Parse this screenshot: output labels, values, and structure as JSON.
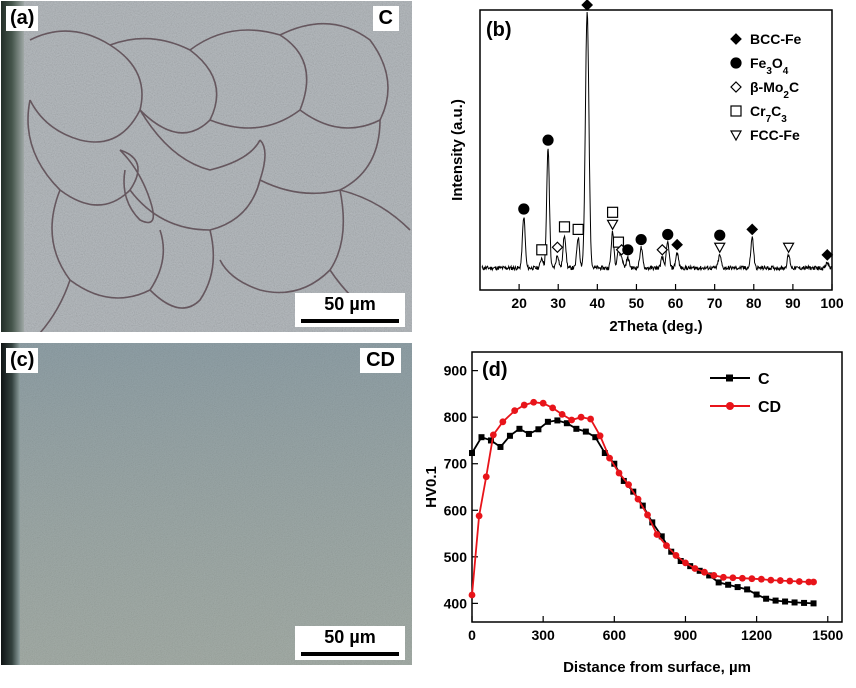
{
  "panel_a": {
    "tag": "(a)",
    "sample": "C",
    "scale": "50 µm"
  },
  "panel_c": {
    "tag": "(c)",
    "sample": "CD",
    "scale": "50 µm"
  },
  "colors": {
    "C": "#000000",
    "CD": "#e8141a",
    "micro_a": "#b7bcc0",
    "micro_c": "#9aa8ae"
  },
  "chart_data": [
    {
      "panel": "(b)",
      "type": "line",
      "xlabel": "2Theta (deg.)",
      "ylabel": "Intensity (a.u.)",
      "xlim": [
        10,
        100
      ],
      "xticks": [
        20,
        30,
        40,
        50,
        60,
        70,
        80,
        90,
        100
      ],
      "legend": [
        {
          "symbol": "diamond-filled",
          "label": "BCC-Fe"
        },
        {
          "symbol": "circle-filled",
          "label": "Fe3O4"
        },
        {
          "symbol": "diamond-open",
          "label": "β-Mo2C"
        },
        {
          "symbol": "square-open",
          "label": "Cr7C3"
        },
        {
          "symbol": "triangle-down-open",
          "label": "FCC-Fe"
        }
      ],
      "legend_position": "top-right",
      "peaks": [
        {
          "x": 21.2,
          "h": 0.2,
          "markers": [
            "circle-filled"
          ]
        },
        {
          "x": 25.8,
          "h": 0.04,
          "markers": [
            "square-open"
          ]
        },
        {
          "x": 27.4,
          "h": 0.47,
          "markers": [
            "circle-filled"
          ]
        },
        {
          "x": 29.8,
          "h": 0.05,
          "markers": [
            "diamond-open"
          ]
        },
        {
          "x": 31.6,
          "h": 0.13,
          "markers": [
            "square-open"
          ]
        },
        {
          "x": 35.1,
          "h": 0.12,
          "markers": [
            "square-open"
          ]
        },
        {
          "x": 37.4,
          "h": 1.0,
          "markers": [
            "diamond-filled",
            "square-open",
            "triangle-down-open"
          ]
        },
        {
          "x": 43.9,
          "h": 0.14,
          "markers": [
            "triangle-down-open",
            "square-open"
          ]
        },
        {
          "x": 45.4,
          "h": 0.07,
          "markers": [
            "square-open"
          ]
        },
        {
          "x": 46.2,
          "h": 0.04,
          "markers": [
            "diamond-open"
          ]
        },
        {
          "x": 47.8,
          "h": 0.04,
          "markers": [
            "circle-filled"
          ]
        },
        {
          "x": 51.2,
          "h": 0.08,
          "markers": [
            "circle-filled"
          ]
        },
        {
          "x": 56.6,
          "h": 0.04,
          "markers": [
            "diamond-open"
          ]
        },
        {
          "x": 58.0,
          "h": 0.1,
          "markers": [
            "circle-filled"
          ]
        },
        {
          "x": 60.4,
          "h": 0.06,
          "markers": [
            "diamond-filled"
          ]
        },
        {
          "x": 71.3,
          "h": 0.05,
          "markers": [
            "triangle-down-open",
            "circle-filled"
          ]
        },
        {
          "x": 79.6,
          "h": 0.12,
          "markers": [
            "diamond-filled"
          ]
        },
        {
          "x": 88.9,
          "h": 0.05,
          "markers": [
            "triangle-down-open"
          ]
        },
        {
          "x": 98.8,
          "h": 0.02,
          "markers": [
            "diamond-filled"
          ]
        }
      ]
    },
    {
      "panel": "(d)",
      "type": "line",
      "xlabel": "Distance from surface, µm",
      "ylabel": "HV0.1",
      "xlim": [
        0,
        1560
      ],
      "ylim": [
        360,
        940
      ],
      "xticks": [
        0,
        300,
        600,
        900,
        1200,
        1500
      ],
      "yticks": [
        400,
        500,
        600,
        700,
        800,
        900
      ],
      "legend_position": "top-right",
      "series": [
        {
          "name": "C",
          "marker": "square",
          "x": [
            0,
            40,
            80,
            120,
            160,
            200,
            240,
            280,
            320,
            360,
            400,
            440,
            480,
            520,
            560,
            600,
            640,
            680,
            720,
            760,
            800,
            840,
            880,
            920,
            960,
            1000,
            1040,
            1080,
            1120,
            1160,
            1200,
            1240,
            1280,
            1320,
            1360,
            1400,
            1440
          ],
          "y": [
            723,
            757,
            750,
            736,
            760,
            775,
            764,
            774,
            790,
            793,
            787,
            775,
            769,
            757,
            723,
            700,
            663,
            640,
            610,
            574,
            544,
            511,
            491,
            480,
            470,
            460,
            445,
            440,
            435,
            430,
            419,
            410,
            406,
            404,
            402,
            401,
            400
          ]
        },
        {
          "name": "CD",
          "marker": "circle",
          "x": [
            0,
            30,
            60,
            90,
            130,
            180,
            220,
            260,
            300,
            340,
            380,
            420,
            460,
            500,
            540,
            580,
            620,
            660,
            700,
            740,
            780,
            820,
            860,
            900,
            940,
            980,
            1020,
            1060,
            1100,
            1140,
            1180,
            1220,
            1260,
            1300,
            1340,
            1380,
            1420,
            1440
          ],
          "y": [
            418,
            588,
            672,
            762,
            790,
            814,
            826,
            832,
            830,
            820,
            806,
            794,
            800,
            796,
            760,
            712,
            680,
            655,
            624,
            590,
            548,
            524,
            503,
            487,
            475,
            467,
            460,
            456,
            455,
            454,
            453,
            452,
            450,
            449,
            448,
            447,
            446,
            446
          ]
        }
      ]
    }
  ]
}
